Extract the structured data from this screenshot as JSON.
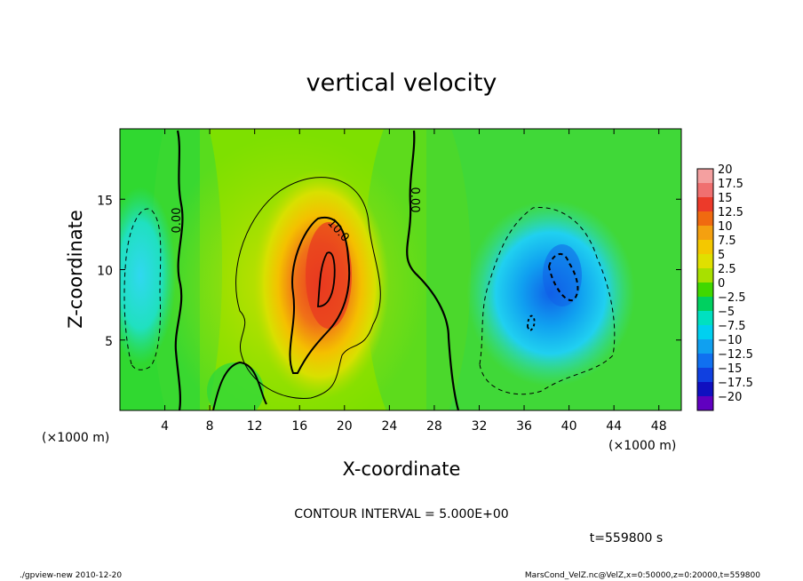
{
  "chart_data": {
    "type": "heatmap",
    "title": "vertical velocity",
    "xlabel": "X-coordinate",
    "ylabel": "Z-coordinate",
    "x_unit": "(×1000 m)",
    "z_unit": "(×1000 m)",
    "xlim": [
      0,
      50
    ],
    "ylim": [
      0,
      20
    ],
    "x_ticks": [
      4,
      8,
      12,
      16,
      20,
      24,
      28,
      32,
      36,
      40,
      44,
      48
    ],
    "y_ticks": [
      5,
      10,
      15
    ],
    "colorbar_levels": [
      "20",
      "17.5",
      "15",
      "12.5",
      "10",
      "7.5",
      "5",
      "2.5",
      "0",
      "-2.5",
      "-5",
      "-7.5",
      "-10",
      "-12.5",
      "-15",
      "-17.5",
      "-20"
    ],
    "colorbar_colors": [
      "#f4a0a0",
      "#f07070",
      "#ec3a2a",
      "#f06a10",
      "#f4a010",
      "#f4c800",
      "#e0e000",
      "#a8e000",
      "#40d800",
      "#00d060",
      "#00e0c0",
      "#00d0f0",
      "#10a0f0",
      "#1070f0",
      "#1040e0",
      "#1010c0",
      "#6000c0"
    ],
    "contour_labels": [
      "0.00",
      "0.00",
      "10.0"
    ],
    "contour_interval_text": "CONTOUR INTERVAL = 5.000E+00",
    "time_text": "t=559800 s",
    "features": [
      {
        "name": "updraft",
        "x": 18,
        "z": 10,
        "peak": 15
      },
      {
        "name": "downdraft",
        "x": 39.5,
        "z": 10,
        "peak": -10
      },
      {
        "name": "downdraft",
        "x": 1.5,
        "z": 10,
        "peak": -5
      }
    ]
  },
  "footer": {
    "left": "./gpview-new   2010-12-20",
    "right": "MarsCond_VelZ.nc@VelZ,x=0:50000,z=0:20000,t=559800"
  }
}
